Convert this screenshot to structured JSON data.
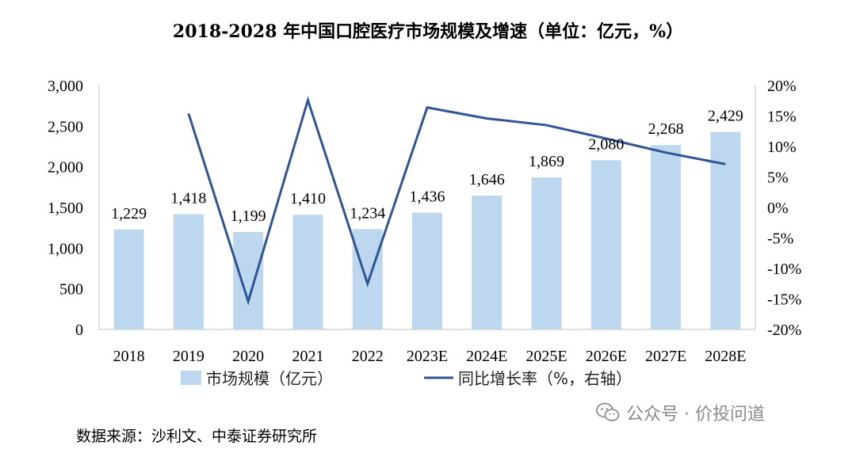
{
  "chart_data": {
    "type": "bar",
    "title": "2018-2028 年中国口腔医疗市场规模及增速（单位：亿元，%）",
    "categories": [
      "2018",
      "2019",
      "2020",
      "2021",
      "2022",
      "2023E",
      "2024E",
      "2025E",
      "2026E",
      "2027E",
      "2028E"
    ],
    "series": [
      {
        "name": "市场规模（亿元）",
        "kind": "bar",
        "axis": "left",
        "values": [
          1229,
          1418,
          1199,
          1410,
          1234,
          1436,
          1646,
          1869,
          2080,
          2268,
          2429
        ],
        "labels": [
          "1,229",
          "1,418",
          "1,199",
          "1,410",
          "1,234",
          "1,436",
          "1,646",
          "1,869",
          "2,080",
          "2,268",
          "2,429"
        ],
        "color": "#bdd7ee"
      },
      {
        "name": "同比增长率（%，右轴）",
        "kind": "line",
        "axis": "right",
        "values": [
          null,
          15.4,
          -15.4,
          17.6,
          -12.5,
          16.4,
          14.6,
          13.5,
          11.3,
          9.0,
          7.1
        ],
        "color": "#2f5597"
      }
    ],
    "y_left": {
      "ylim": [
        0,
        3000
      ],
      "ticks": [
        0,
        500,
        1000,
        1500,
        2000,
        2500,
        3000
      ],
      "tick_labels": [
        "0",
        "500",
        "1,000",
        "1,500",
        "2,000",
        "2,500",
        "3,000"
      ]
    },
    "y_right": {
      "ylim": [
        -20,
        20
      ],
      "ticks": [
        -20,
        -15,
        -10,
        -5,
        0,
        5,
        10,
        15,
        20
      ],
      "tick_labels": [
        "-20%",
        "-15%",
        "-10%",
        "-5%",
        "0%",
        "5%",
        "10%",
        "15%",
        "20%"
      ]
    },
    "legend": "bottom"
  },
  "source_note": "数据来源：沙利文、中泰证券研究所",
  "watermark": {
    "text": "公众号 · 价投问道",
    "icon": "wechat-icon"
  }
}
